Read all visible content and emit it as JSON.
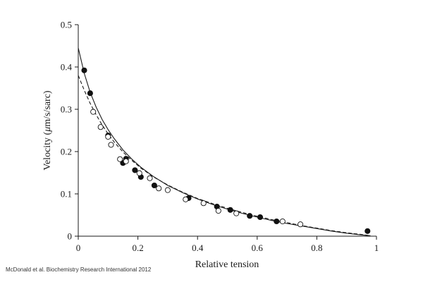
{
  "credit": "McDonald et al. Biochemistry Research International 2012",
  "chart_data": {
    "type": "scatter",
    "title": "",
    "xlabel": "Relative tension",
    "ylabel_prefix": "Velocity (",
    "ylabel_mu": "μ",
    "ylabel_suffix": "m/s/sarc)",
    "xlim": [
      0,
      1
    ],
    "ylim": [
      0,
      0.5
    ],
    "xticks": [
      0,
      0.2,
      0.4,
      0.6,
      0.8,
      1
    ],
    "xtick_labels": [
      "0",
      "0.2",
      "0.4",
      "0.6",
      "0.8",
      "1"
    ],
    "yticks": [
      0,
      0.1,
      0.2,
      0.3,
      0.4,
      0.5
    ],
    "ytick_labels": [
      "0",
      "0.1",
      "0.2",
      "0.3",
      "0.4",
      "0.5"
    ],
    "grid": false,
    "legend": "none",
    "series": [
      {
        "marker": "filled-circle",
        "points": [
          [
            0.02,
            0.392
          ],
          [
            0.04,
            0.338
          ],
          [
            0.1,
            0.238
          ],
          [
            0.15,
            0.173
          ],
          [
            0.16,
            0.183
          ],
          [
            0.19,
            0.156
          ],
          [
            0.21,
            0.14
          ],
          [
            0.255,
            0.12
          ],
          [
            0.37,
            0.09
          ],
          [
            0.465,
            0.07
          ],
          [
            0.51,
            0.062
          ],
          [
            0.575,
            0.048
          ],
          [
            0.61,
            0.045
          ],
          [
            0.665,
            0.035
          ],
          [
            0.97,
            0.012
          ]
        ]
      },
      {
        "marker": "open-circle",
        "points": [
          [
            0.05,
            0.294
          ],
          [
            0.075,
            0.258
          ],
          [
            0.1,
            0.235
          ],
          [
            0.11,
            0.216
          ],
          [
            0.14,
            0.182
          ],
          [
            0.16,
            0.177
          ],
          [
            0.205,
            0.149
          ],
          [
            0.24,
            0.137
          ],
          [
            0.27,
            0.113
          ],
          [
            0.3,
            0.109
          ],
          [
            0.36,
            0.087
          ],
          [
            0.42,
            0.078
          ],
          [
            0.47,
            0.06
          ],
          [
            0.53,
            0.054
          ],
          [
            0.685,
            0.035
          ],
          [
            0.745,
            0.028
          ]
        ]
      }
    ],
    "fits": [
      {
        "style": "solid",
        "points": [
          [
            0.0,
            0.445
          ],
          [
            0.02,
            0.385
          ],
          [
            0.04,
            0.34
          ],
          [
            0.06,
            0.305
          ],
          [
            0.08,
            0.276
          ],
          [
            0.1,
            0.252
          ],
          [
            0.12,
            0.231
          ],
          [
            0.15,
            0.204
          ],
          [
            0.18,
            0.182
          ],
          [
            0.21,
            0.163
          ],
          [
            0.25,
            0.142
          ],
          [
            0.3,
            0.12
          ],
          [
            0.35,
            0.103
          ],
          [
            0.4,
            0.088
          ],
          [
            0.45,
            0.075
          ],
          [
            0.5,
            0.064
          ],
          [
            0.55,
            0.054
          ],
          [
            0.6,
            0.045
          ],
          [
            0.65,
            0.037
          ],
          [
            0.7,
            0.03
          ],
          [
            0.75,
            0.024
          ],
          [
            0.8,
            0.018
          ],
          [
            0.85,
            0.012
          ],
          [
            0.9,
            0.007
          ],
          [
            0.95,
            0.003
          ],
          [
            0.98,
            0.001
          ]
        ]
      },
      {
        "style": "dashed",
        "points": [
          [
            0.0,
            0.38
          ],
          [
            0.02,
            0.345
          ],
          [
            0.04,
            0.314
          ],
          [
            0.06,
            0.287
          ],
          [
            0.08,
            0.263
          ],
          [
            0.1,
            0.242
          ],
          [
            0.12,
            0.223
          ],
          [
            0.15,
            0.199
          ],
          [
            0.18,
            0.179
          ],
          [
            0.21,
            0.161
          ],
          [
            0.25,
            0.141
          ],
          [
            0.3,
            0.121
          ],
          [
            0.35,
            0.104
          ],
          [
            0.4,
            0.089
          ],
          [
            0.45,
            0.077
          ],
          [
            0.5,
            0.066
          ],
          [
            0.55,
            0.056
          ],
          [
            0.6,
            0.047
          ],
          [
            0.65,
            0.039
          ],
          [
            0.7,
            0.032
          ],
          [
            0.75,
            0.025
          ],
          [
            0.8,
            0.019
          ],
          [
            0.85,
            0.013
          ],
          [
            0.9,
            0.008
          ],
          [
            0.95,
            0.004
          ],
          [
            0.98,
            0.001
          ]
        ]
      }
    ]
  }
}
